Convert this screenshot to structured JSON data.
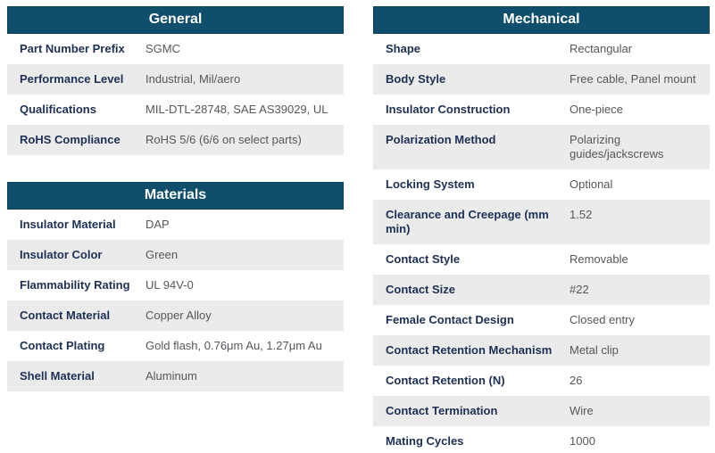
{
  "accent_color": "#0f4f6b",
  "row_alt_color": "#ebebeb",
  "label_color": "#1d3054",
  "value_color": "#54575b",
  "tables": {
    "general": {
      "title": "General",
      "rows": [
        {
          "label": "Part Number Prefix",
          "value": "SGMC"
        },
        {
          "label": "Performance Level",
          "value": "Industrial, Mil/aero"
        },
        {
          "label": "Qualifications",
          "value": "MIL-DTL-28748, SAE AS39029, UL"
        },
        {
          "label": "RoHS Compliance",
          "value": "RoHS 5/6 (6/6 on select parts)"
        }
      ]
    },
    "materials": {
      "title": "Materials",
      "rows": [
        {
          "label": "Insulator Material",
          "value": "DAP"
        },
        {
          "label": "Insulator Color",
          "value": "Green"
        },
        {
          "label": "Flammability Rating",
          "value": "UL 94V-0"
        },
        {
          "label": "Contact Material",
          "value": "Copper Alloy"
        },
        {
          "label": "Contact Plating",
          "value": "Gold flash, 0.76μm Au, 1.27μm Au"
        },
        {
          "label": "Shell Material",
          "value": "Aluminum"
        }
      ]
    },
    "mechanical": {
      "title": "Mechanical",
      "rows": [
        {
          "label": "Shape",
          "value": "Rectangular"
        },
        {
          "label": "Body Style",
          "value": "Free cable, Panel mount"
        },
        {
          "label": "Insulator Construction",
          "value": "One-piece"
        },
        {
          "label": "Polarization Method",
          "value": "Polarizing guides/jackscrews"
        },
        {
          "label": "Locking System",
          "value": "Optional"
        },
        {
          "label": "Clearance and Creepage (mm min)",
          "value": "1.52"
        },
        {
          "label": "Contact Style",
          "value": "Removable"
        },
        {
          "label": "Contact Size",
          "value": "#22"
        },
        {
          "label": "Female Contact Design",
          "value": "Closed entry"
        },
        {
          "label": "Contact Retention Mechanism",
          "value": "Metal clip"
        },
        {
          "label": "Contact Retention (N)",
          "value": "26"
        },
        {
          "label": "Contact Termination",
          "value": "Wire"
        },
        {
          "label": "Mating Cycles",
          "value": "1000"
        }
      ]
    }
  }
}
